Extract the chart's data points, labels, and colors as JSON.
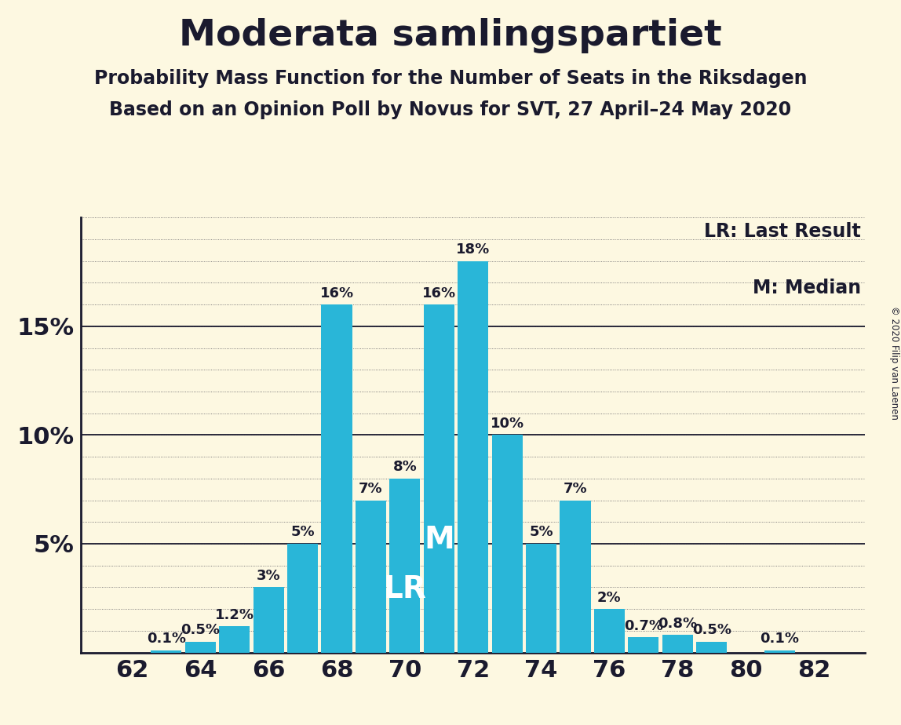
{
  "title": "Moderata samlingspartiet",
  "subtitle1": "Probability Mass Function for the Number of Seats in the Riksdagen",
  "subtitle2": "Based on an Opinion Poll by Novus for SVT, 27 April–24 May 2020",
  "copyright": "© 2020 Filip van Laenen",
  "legend_lr": "LR: Last Result",
  "legend_m": "M: Median",
  "seats": [
    62,
    63,
    64,
    65,
    66,
    67,
    68,
    69,
    70,
    71,
    72,
    73,
    74,
    75,
    76,
    77,
    78,
    79,
    80,
    81,
    82
  ],
  "probabilities": [
    0.0,
    0.1,
    0.5,
    1.2,
    3.0,
    5.0,
    16.0,
    7.0,
    8.0,
    16.0,
    18.0,
    10.0,
    5.0,
    7.0,
    2.0,
    0.7,
    0.8,
    0.5,
    0.0,
    0.1,
    0.0
  ],
  "bar_color": "#29b6d8",
  "background_color": "#fdf8e1",
  "text_color": "#1a1a2e",
  "lr_seat": 70,
  "median_seat": 71,
  "ylim": [
    0,
    20
  ],
  "yticks": [
    0,
    5,
    10,
    15,
    20
  ],
  "xticks": [
    62,
    64,
    66,
    68,
    70,
    72,
    74,
    76,
    78,
    80,
    82
  ],
  "title_fontsize": 34,
  "subtitle_fontsize": 17,
  "axis_fontsize": 22,
  "annotation_fontsize": 13,
  "lr_m_fontsize": 28
}
